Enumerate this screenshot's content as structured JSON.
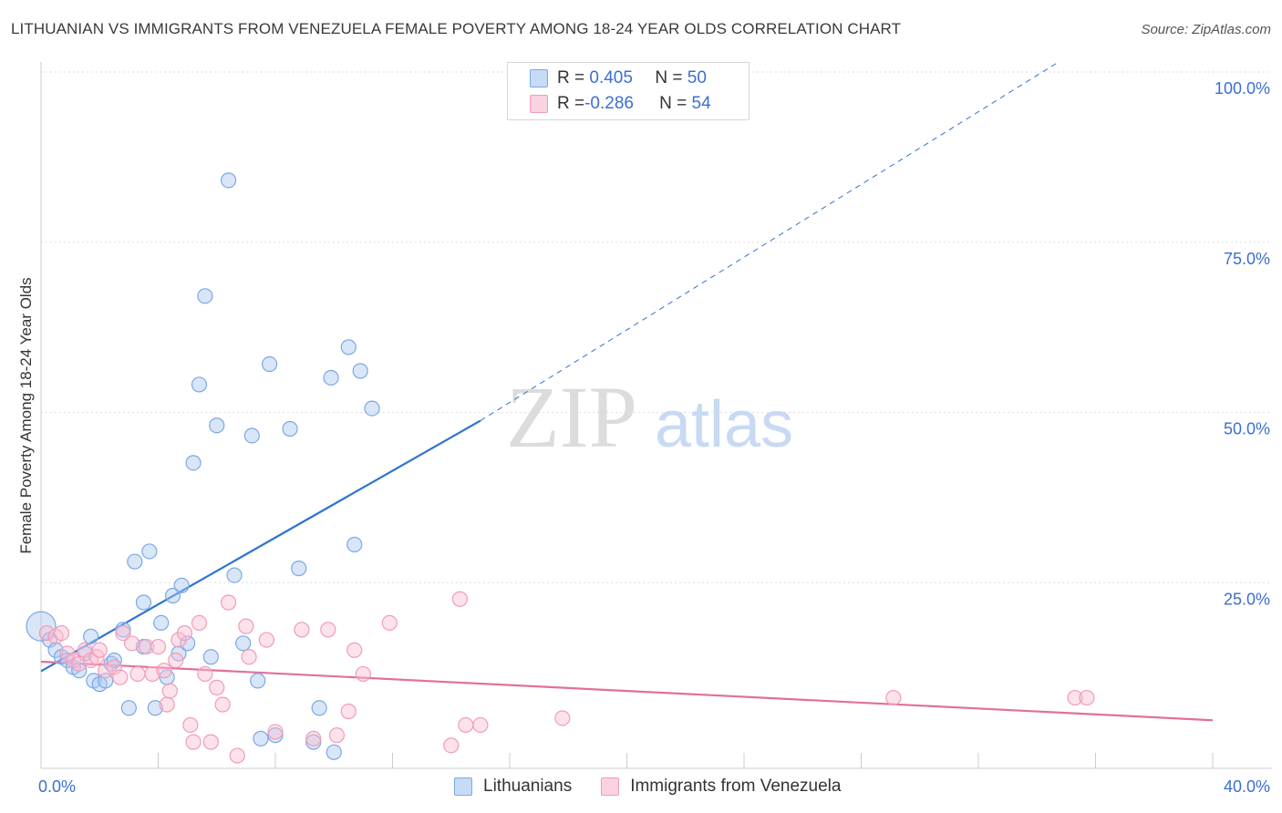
{
  "title": "LITHUANIAN VS IMMIGRANTS FROM VENEZUELA FEMALE POVERTY AMONG 18-24 YEAR OLDS CORRELATION CHART",
  "source": "Source: ZipAtlas.com",
  "watermark": {
    "zip": "ZIP",
    "atlas": "atlas"
  },
  "legend": {
    "rows": [
      {
        "r_label": "R = ",
        "r_value": "0.405",
        "n_label": "N = ",
        "n_value": "50",
        "color": "#7aa8e6"
      },
      {
        "r_label": "R = ",
        "r_value": "-0.286",
        "n_label": "N = ",
        "n_value": "54",
        "color": "#f29bb8"
      }
    ]
  },
  "bottom_legend": [
    "Lithuanians",
    "Immigrants from Venezuela"
  ],
  "chart_data": {
    "type": "scatter",
    "ylabel": "Female Poverty Among 18-24 Year Olds",
    "xlim": [
      0,
      40
    ],
    "ylim": [
      0,
      100
    ],
    "x_ticks": [
      "0.0%",
      "40.0%"
    ],
    "y_ticks": [
      {
        "value": 100,
        "label": "100.0%"
      },
      {
        "value": 75,
        "label": "75.0%"
      },
      {
        "value": 50,
        "label": "50.0%"
      },
      {
        "value": 25,
        "label": "25.0%"
      }
    ],
    "grid": true,
    "series": [
      {
        "name": "Lithuanians",
        "color": "#7aa8e6",
        "line_color": "#2f74d0",
        "trend": {
          "x0": 0,
          "y0": 14.4,
          "x1": 15,
          "y1": 51.2,
          "dash_x1": 40,
          "dash_y1": 112.5
        },
        "points": [
          [
            0,
            21
          ],
          [
            0.3,
            19
          ],
          [
            0.5,
            17.5
          ],
          [
            0.7,
            16.5
          ],
          [
            0.9,
            16
          ],
          [
            1.1,
            15
          ],
          [
            1.3,
            14.5
          ],
          [
            1.5,
            17
          ],
          [
            1.7,
            19.5
          ],
          [
            1.8,
            13
          ],
          [
            2.0,
            12.5
          ],
          [
            2.2,
            13
          ],
          [
            2.4,
            15.5
          ],
          [
            2.5,
            16
          ],
          [
            2.8,
            20.5
          ],
          [
            3.0,
            9
          ],
          [
            3.2,
            30.5
          ],
          [
            3.5,
            18
          ],
          [
            3.5,
            24.5
          ],
          [
            3.7,
            32
          ],
          [
            3.9,
            9
          ],
          [
            4.1,
            21.5
          ],
          [
            4.3,
            13.5
          ],
          [
            4.5,
            25.5
          ],
          [
            4.7,
            17
          ],
          [
            4.8,
            27
          ],
          [
            5.0,
            18.5
          ],
          [
            5.2,
            45
          ],
          [
            5.4,
            56.5
          ],
          [
            5.6,
            69.5
          ],
          [
            5.8,
            16.5
          ],
          [
            6.0,
            50.5
          ],
          [
            6.4,
            86.5
          ],
          [
            6.6,
            28.5
          ],
          [
            6.9,
            18.5
          ],
          [
            7.2,
            49
          ],
          [
            7.4,
            13
          ],
          [
            7.5,
            4.5
          ],
          [
            7.8,
            59.5
          ],
          [
            8.0,
            5
          ],
          [
            8.5,
            50
          ],
          [
            8.8,
            29.5
          ],
          [
            9.3,
            4
          ],
          [
            9.5,
            9
          ],
          [
            9.9,
            57.5
          ],
          [
            10.0,
            2.5
          ],
          [
            10.5,
            62
          ],
          [
            10.7,
            33
          ],
          [
            10.9,
            58.5
          ],
          [
            11.3,
            53
          ]
        ]
      },
      {
        "name": "Immigrants from Venezuela",
        "color": "#f29bb8",
        "line_color": "#e0709a",
        "trend": {
          "x0": 0,
          "y0": 15.8,
          "x1": 40,
          "y1": 7.2
        },
        "points": [
          [
            0.2,
            20
          ],
          [
            0.5,
            19.5
          ],
          [
            0.7,
            20
          ],
          [
            0.9,
            17
          ],
          [
            1.1,
            16
          ],
          [
            1.3,
            15.5
          ],
          [
            1.5,
            17.5
          ],
          [
            1.7,
            16
          ],
          [
            1.9,
            16.5
          ],
          [
            2.0,
            17.5
          ],
          [
            2.2,
            14.5
          ],
          [
            2.5,
            15
          ],
          [
            2.7,
            13.5
          ],
          [
            2.8,
            20
          ],
          [
            3.1,
            18.5
          ],
          [
            3.3,
            14
          ],
          [
            3.6,
            18
          ],
          [
            3.8,
            14
          ],
          [
            4.0,
            18
          ],
          [
            4.2,
            14.5
          ],
          [
            4.3,
            9.5
          ],
          [
            4.4,
            11.5
          ],
          [
            4.6,
            16
          ],
          [
            4.7,
            19
          ],
          [
            4.9,
            20
          ],
          [
            5.1,
            6.5
          ],
          [
            5.2,
            4
          ],
          [
            5.4,
            21.5
          ],
          [
            5.6,
            14
          ],
          [
            5.8,
            4
          ],
          [
            6.0,
            12
          ],
          [
            6.2,
            9.5
          ],
          [
            6.4,
            24.5
          ],
          [
            6.7,
            2
          ],
          [
            7.0,
            21
          ],
          [
            7.1,
            16.5
          ],
          [
            7.7,
            19
          ],
          [
            8.0,
            5.5
          ],
          [
            8.9,
            20.5
          ],
          [
            9.3,
            4.5
          ],
          [
            9.8,
            20.5
          ],
          [
            10.1,
            5
          ],
          [
            10.5,
            8.5
          ],
          [
            10.7,
            17.5
          ],
          [
            11.0,
            14
          ],
          [
            11.9,
            21.5
          ],
          [
            14.0,
            3.5
          ],
          [
            14.3,
            25
          ],
          [
            14.5,
            6.5
          ],
          [
            17.8,
            7.5
          ],
          [
            29.1,
            10.5
          ],
          [
            35.3,
            10.5
          ],
          [
            35.7,
            10.5
          ],
          [
            15.0,
            6.5
          ]
        ]
      }
    ]
  }
}
